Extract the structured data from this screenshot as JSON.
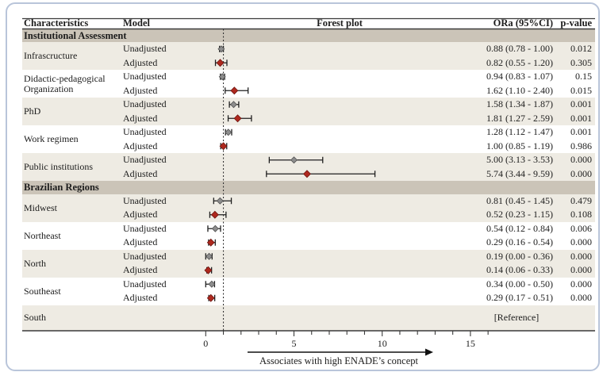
{
  "header": {
    "characteristics": "Characteristics",
    "model": "Model",
    "forest_plot": "Forest plot",
    "or_ci": "ORa (95%CI)",
    "p_value": "p-value"
  },
  "colors": {
    "frame": "#b9c5da",
    "section_band": "#cbc4b8",
    "row_shade": "#eeebe3",
    "unadjusted_marker": "#8d8d8d",
    "unadjusted_marker_stroke": "#4f4f4f",
    "adjusted_marker": "#ae281e",
    "adjusted_marker_stroke": "#6e1510",
    "error_bar": "#1f1f1f",
    "rule": "#3a3a3a",
    "dotted_reference_line": "#333333"
  },
  "chart_data": {
    "type": "scatter",
    "subtype": "forest-plot",
    "title": "Forest plot",
    "xlabel": "Associates with high ENADE’s concept",
    "xlim": [
      0,
      16
    ],
    "x_major_ticks": [
      0,
      5,
      10,
      15
    ],
    "x_minor_tick_step": 1,
    "reference_line_x": 1,
    "legend": {
      "Unadjusted": "gray diamond",
      "Adjusted": "red diamond"
    },
    "sections": [
      {
        "title": "Institutional Assessment",
        "groups": [
          {
            "name": "Infrascructure",
            "shaded": true,
            "rows": [
              {
                "model": "Unadjusted",
                "or": 0.88,
                "lo": 0.78,
                "hi": 1.0,
                "or_text": "0.88 (0.78 - 1.00)",
                "p": "0.012",
                "marker": "unadjusted"
              },
              {
                "model": "Adjusted",
                "or": 0.82,
                "lo": 0.55,
                "hi": 1.2,
                "or_text": "0.82 (0.55 - 1.20)",
                "p": "0.305",
                "marker": "adjusted"
              }
            ]
          },
          {
            "name": "Didactic-pedagogical Organization",
            "shaded": false,
            "rows": [
              {
                "model": "Unadjusted",
                "or": 0.94,
                "lo": 0.83,
                "hi": 1.07,
                "or_text": "0.94 (0.83 - 1.07)",
                "p": "0.15",
                "marker": "unadjusted"
              },
              {
                "model": "Adjusted",
                "or": 1.62,
                "lo": 1.1,
                "hi": 2.4,
                "or_text": "1.62 (1.10 - 2.40)",
                "p": "0.015",
                "marker": "adjusted"
              }
            ]
          },
          {
            "name": "PhD",
            "shaded": true,
            "rows": [
              {
                "model": "Unadjusted",
                "or": 1.58,
                "lo": 1.34,
                "hi": 1.87,
                "or_text": "1.58 (1.34 - 1.87)",
                "p": "0.001",
                "marker": "unadjusted"
              },
              {
                "model": "Adjusted",
                "or": 1.81,
                "lo": 1.27,
                "hi": 2.59,
                "or_text": "1.81 (1.27 - 2.59)",
                "p": "0.001",
                "marker": "adjusted"
              }
            ]
          },
          {
            "name": "Work regimen",
            "shaded": false,
            "rows": [
              {
                "model": "Unadjusted",
                "or": 1.28,
                "lo": 1.12,
                "hi": 1.47,
                "or_text": "1.28 (1.12 - 1.47)",
                "p": "0.001",
                "marker": "unadjusted"
              },
              {
                "model": "Adjusted",
                "or": 1.0,
                "lo": 0.85,
                "hi": 1.19,
                "or_text": "1.00 (0.85 - 1.19)",
                "p": "0.986",
                "marker": "adjusted"
              }
            ]
          },
          {
            "name": "Public institutions",
            "shaded": true,
            "rows": [
              {
                "model": "Unadjusted",
                "or": 5.0,
                "lo": 3.13,
                "hi": 3.53,
                "plot_lo": 3.6,
                "plot_hi": 6.63,
                "or_text": "5.00 (3.13 - 3.53)",
                "p": "0.000",
                "marker": "unadjusted"
              },
              {
                "model": "Adjusted",
                "or": 5.74,
                "lo": 3.44,
                "hi": 9.59,
                "or_text": "5.74 (3.44 - 9.59)",
                "p": "0.000",
                "marker": "adjusted"
              }
            ]
          }
        ]
      },
      {
        "title": "Brazilian Regions",
        "groups": [
          {
            "name": "Midwest",
            "shaded": true,
            "rows": [
              {
                "model": "Unadjusted",
                "or": 0.81,
                "lo": 0.45,
                "hi": 1.45,
                "or_text": "0.81 (0.45 - 1.45)",
                "p": "0.479",
                "marker": "unadjusted"
              },
              {
                "model": "Adjusted",
                "or": 0.52,
                "lo": 0.23,
                "hi": 1.15,
                "or_text": "0.52 (0.23 - 1.15)",
                "p": "0.108",
                "marker": "adjusted"
              }
            ]
          },
          {
            "name": "Northeast",
            "shaded": false,
            "rows": [
              {
                "model": "Unadjusted",
                "or": 0.54,
                "lo": 0.12,
                "hi": 0.84,
                "or_text": "0.54 (0.12 - 0.84)",
                "p": "0.006",
                "marker": "unadjusted"
              },
              {
                "model": "Adjusted",
                "or": 0.29,
                "lo": 0.16,
                "hi": 0.54,
                "or_text": "0.29 (0.16 - 0.54)",
                "p": "0.000",
                "marker": "adjusted"
              }
            ]
          },
          {
            "name": "North",
            "shaded": true,
            "rows": [
              {
                "model": "Unadjusted",
                "or": 0.19,
                "lo": 0.0,
                "hi": 0.36,
                "or_text": "0.19 (0.00 - 0.36)",
                "p": "0.000",
                "marker": "unadjusted"
              },
              {
                "model": "Adjusted",
                "or": 0.14,
                "lo": 0.06,
                "hi": 0.33,
                "or_text": "0.14 (0.06 - 0.33)",
                "p": "0.000",
                "marker": "adjusted"
              }
            ]
          },
          {
            "name": "Southeast",
            "shaded": false,
            "rows": [
              {
                "model": "Unadjusted",
                "or": 0.34,
                "lo": 0.0,
                "hi": 0.5,
                "or_text": "0.34 (0.00 - 0.50)",
                "p": "0.000",
                "marker": "unadjusted"
              },
              {
                "model": "Adjusted",
                "or": 0.29,
                "lo": 0.17,
                "hi": 0.51,
                "or_text": "0.29 (0.17 - 0.51)",
                "p": "0.000",
                "marker": "adjusted"
              }
            ]
          }
        ]
      }
    ],
    "reference_row": {
      "name": "South",
      "value": "[Reference]",
      "shaded": true
    }
  }
}
